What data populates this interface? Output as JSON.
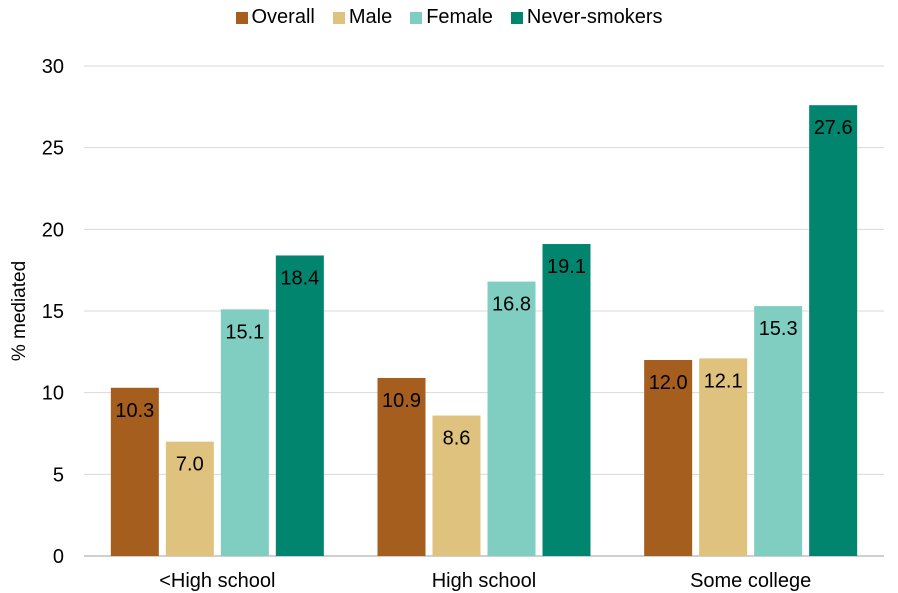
{
  "chart_data": {
    "type": "bar",
    "title": "",
    "xlabel": "",
    "ylabel": "% mediated",
    "ylim": [
      0,
      30
    ],
    "yticks": [
      0,
      5,
      10,
      15,
      20,
      25,
      30
    ],
    "grid": "horizontal",
    "legend_position": "top",
    "categories": [
      "<High school",
      "High school",
      "Some college"
    ],
    "series": [
      {
        "name": "Overall",
        "color": "#A65E1E",
        "values": [
          10.3,
          10.9,
          12.0
        ],
        "labels": [
          "10.3",
          "10.9",
          "12.0"
        ]
      },
      {
        "name": "Male",
        "color": "#DFC27D",
        "values": [
          7.0,
          8.6,
          12.1
        ],
        "labels": [
          "7.0",
          "8.6",
          "12.1"
        ]
      },
      {
        "name": "Female",
        "color": "#80CDC1",
        "values": [
          15.1,
          16.8,
          15.3
        ],
        "labels": [
          "15.1",
          "16.8",
          "15.3"
        ]
      },
      {
        "name": "Never-smokers",
        "color": "#01856F",
        "values": [
          18.4,
          19.1,
          27.6
        ],
        "labels": [
          "18.4",
          "19.1",
          "27.6"
        ]
      }
    ]
  }
}
